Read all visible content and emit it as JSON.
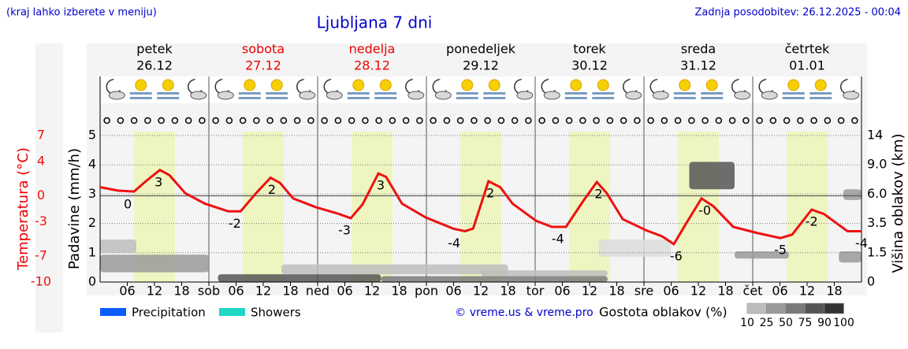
{
  "chart_data": {
    "type": "line",
    "title": "Ljubljana 7 dni",
    "note": "(kraj lahko izberete v meniju)",
    "updated": "Zadnja posodobitev: 26.12.2025 - 00:04",
    "credit": "© vreme.us & vreme.pro",
    "days": [
      {
        "name": "petek",
        "date": "26.12",
        "color": "#000000"
      },
      {
        "name": "sobota",
        "date": "27.12",
        "color": "#ee0000"
      },
      {
        "name": "nedelja",
        "date": "28.12",
        "color": "#ee0000"
      },
      {
        "name": "ponedeljek",
        "date": "29.12",
        "color": "#000000"
      },
      {
        "name": "torek",
        "date": "30.12",
        "color": "#000000"
      },
      {
        "name": "sreda",
        "date": "31.12",
        "color": "#000000"
      },
      {
        "name": "četrtek",
        "date": "01.01",
        "color": "#000000"
      }
    ],
    "daylight_hours": [
      7.5,
      16.5
    ],
    "xlim": [
      0,
      168
    ],
    "xticks": [
      {
        "value": 6,
        "label": "06"
      },
      {
        "value": 12,
        "label": "12"
      },
      {
        "value": 18,
        "label": "18"
      },
      {
        "value": 24,
        "label": "sob"
      },
      {
        "value": 30,
        "label": "06"
      },
      {
        "value": 36,
        "label": "12"
      },
      {
        "value": 42,
        "label": "18"
      },
      {
        "value": 48,
        "label": "ned"
      },
      {
        "value": 54,
        "label": "06"
      },
      {
        "value": 60,
        "label": "12"
      },
      {
        "value": 66,
        "label": "18"
      },
      {
        "value": 72,
        "label": "pon"
      },
      {
        "value": 78,
        "label": "06"
      },
      {
        "value": 84,
        "label": "12"
      },
      {
        "value": 90,
        "label": "18"
      },
      {
        "value": 96,
        "label": "tor"
      },
      {
        "value": 102,
        "label": "06"
      },
      {
        "value": 108,
        "label": "12"
      },
      {
        "value": 114,
        "label": "18"
      },
      {
        "value": 120,
        "label": "sre"
      },
      {
        "value": 126,
        "label": "06"
      },
      {
        "value": 132,
        "label": "12"
      },
      {
        "value": 138,
        "label": "18"
      },
      {
        "value": 144,
        "label": "čet"
      },
      {
        "value": 150,
        "label": "06"
      },
      {
        "value": 156,
        "label": "12"
      },
      {
        "value": 162,
        "label": "18"
      }
    ],
    "grid": true,
    "temperature": {
      "label": "Temperatura (°C)",
      "color": "#ee1111",
      "ylim": [
        -10,
        7
      ],
      "yticks": [
        7,
        4,
        0,
        -3,
        -7,
        -10
      ],
      "x": [
        0,
        4,
        7.5,
        10.1,
        13.2,
        15.3,
        18.8,
        23.1,
        28.3,
        31,
        34.4,
        37.6,
        39.7,
        42.6,
        47.5,
        52.7,
        55.3,
        57.9,
        61.4,
        63.1,
        66.6,
        71.8,
        77.9,
        80.5,
        82.3,
        85.7,
        88.3,
        91,
        96.2,
        99.7,
        102.8,
        106.6,
        109.6,
        111.8,
        115.3,
        120.5,
        124,
        126.6,
        129.2,
        132.7,
        135.3,
        139.7,
        144.9,
        150.1,
        152.7,
        157,
        159.7,
        164.9,
        168
      ],
      "values": [
        1.0,
        0.6,
        0.5,
        1.7,
        3.0,
        2.4,
        0.3,
        -0.9,
        -1.8,
        -1.8,
        0.3,
        2.1,
        1.5,
        -0.3,
        -1.3,
        -2.1,
        -2.6,
        -1.0,
        2.6,
        2.2,
        -0.9,
        -2.5,
        -3.8,
        -4.1,
        -3.8,
        1.7,
        1.0,
        -0.9,
        -2.9,
        -3.6,
        -3.6,
        -0.6,
        1.6,
        0.3,
        -2.7,
        -4.0,
        -4.7,
        -5.6,
        -3.3,
        -0.3,
        -1.2,
        -3.6,
        -4.3,
        -4.9,
        -4.5,
        -1.6,
        -2.1,
        -4.1,
        -4.1
      ],
      "extremes": {
        "x": [
          6.1,
          12.9,
          29.7,
          37.9,
          53.9,
          61.9,
          78.1,
          86.1,
          101,
          110,
          127.1,
          133.4,
          150.1,
          157,
          168
        ],
        "values": [
          0.4,
          3.0,
          -1.8,
          2.1,
          -2.6,
          2.6,
          -4.1,
          1.7,
          -3.6,
          1.6,
          -5.6,
          -0.3,
          -4.9,
          -1.6,
          -4.1
        ],
        "value_labels": [
          "0",
          "3",
          "-2",
          "2",
          "-3",
          "3",
          "-4",
          "2",
          "-4",
          "2",
          "-6",
          "-0",
          "-5",
          "-2",
          "-4"
        ]
      }
    },
    "precipitation": {
      "label": "Padavine (mm/h)",
      "ylim": [
        0,
        5
      ],
      "yticks": [
        0,
        1,
        2,
        3,
        4,
        5
      ],
      "series": [
        {
          "name": "Precipitation",
          "color": "#0a5cff"
        },
        {
          "name": "Showers",
          "color": "#1fd6c4"
        }
      ]
    },
    "clouds": {
      "label": "Višina oblakov (km)",
      "y2lim": [
        0,
        14
      ],
      "y2ticks": [
        0,
        1.5,
        3.5,
        {
          "value": 6,
          "label": "6.0"
        },
        {
          "value": 9,
          "label": "9.0"
        },
        14
      ],
      "legend_title": "Gostota oblakov (%)",
      "levels": [
        10,
        25,
        50,
        75,
        90,
        100
      ],
      "colors": [
        "#dcdcdc",
        "#bdbdbd",
        "#9a9a9a",
        "#7a7a7a",
        "#555555",
        "#333333"
      ],
      "patches": [
        {
          "x": [
            0,
            24
          ],
          "km": [
            0.5,
            1.4
          ],
          "density": 50
        },
        {
          "x": [
            0,
            8
          ],
          "km": [
            1.5,
            2.4
          ],
          "density": 25
        },
        {
          "x": [
            26,
            62
          ],
          "km": [
            0,
            0.4
          ],
          "density": 90
        },
        {
          "x": [
            40,
            90
          ],
          "km": [
            0.4,
            0.9
          ],
          "density": 25
        },
        {
          "x": [
            62,
            112
          ],
          "km": [
            0,
            0.3
          ],
          "density": 75
        },
        {
          "x": [
            84,
            112
          ],
          "km": [
            0.3,
            0.6
          ],
          "density": 25
        },
        {
          "x": [
            110,
            126
          ],
          "km": [
            1.3,
            2.4
          ],
          "density": 10
        },
        {
          "x": [
            130,
            140
          ],
          "km": [
            6.5,
            9.5
          ],
          "density": 90
        },
        {
          "x": [
            140,
            152
          ],
          "km": [
            1.2,
            1.6
          ],
          "density": 50
        },
        {
          "x": [
            164,
            168
          ],
          "km": [
            5.5,
            6.5
          ],
          "density": 50
        },
        {
          "x": [
            163,
            168
          ],
          "km": [
            1.0,
            1.6
          ],
          "density": 50
        }
      ]
    }
  }
}
